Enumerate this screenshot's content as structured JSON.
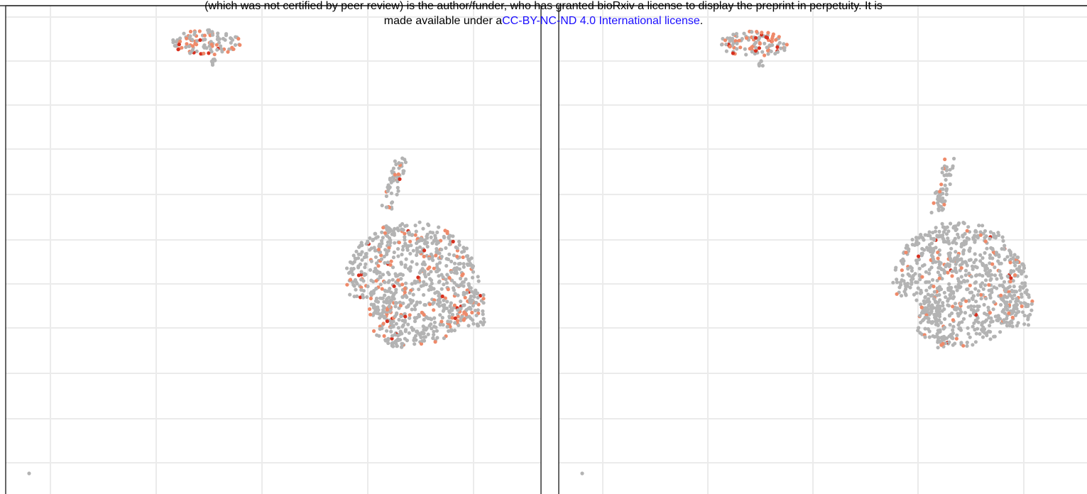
{
  "license_notice": {
    "line1": "(which was not certified by peer review) is the author/funder, who has granted bioRxiv a license to display the preprint in perpetuity. It is",
    "line2_prefix": "made available under a",
    "license_link": "CC-BY-NC-ND 4.0 International license",
    "line2_suffix": "."
  }
}
